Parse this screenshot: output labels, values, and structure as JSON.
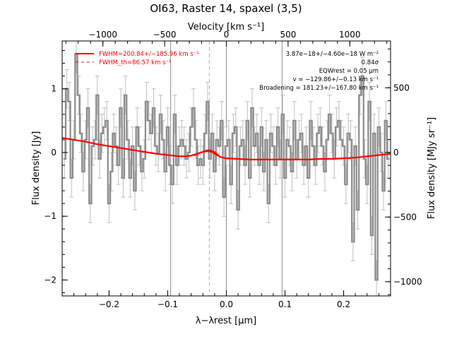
{
  "chart_data": {
    "type": "line",
    "title": "OI63, Raster 14, spaxel (3,5)",
    "xlabel": "λ−λrest [μm]",
    "ylabel": "Flux density [Jy]",
    "top_axis_label": "Velocity [km s⁻¹]",
    "right_axis_label": "Flux density [MJy sr⁻¹]",
    "xlim": [
      -0.28,
      0.28
    ],
    "ylim": [
      -2.25,
      1.75
    ],
    "top_axis_range_kms": [
      -1330,
      1330
    ],
    "right_axis_range": [
      -1110,
      862
    ],
    "xticks": [
      -0.2,
      -0.1,
      0.0,
      0.1,
      0.2
    ],
    "yticks": [
      -2,
      -1,
      0,
      1
    ],
    "top_ticks": [
      -1000,
      -500,
      0,
      500,
      1000
    ],
    "right_ticks": [
      -1000,
      -500,
      0,
      500
    ],
    "vertical_lines": [
      -0.095,
      0.0,
      0.095
    ],
    "dashed_line": -0.029,
    "grid": false,
    "colors": {
      "data": "#8c8c8c",
      "errorbar": "#bfbfbf",
      "fit": "#ff0000",
      "guides": "#8c8c8c"
    },
    "legend": {
      "placement": "top-left",
      "entries": [
        {
          "label": "FWHM=200.84+/−185.96 km s⁻¹",
          "style": "solid"
        },
        {
          "label": "FWHM_th=86.57 km s⁻¹",
          "style": "dashed"
        }
      ]
    },
    "annotations": [
      "3.87e−18+/−4.60e−18 W m⁻²",
      "0.84σ",
      "EQWrest = 0.05 μm",
      "v = −129.86+/−0.13 km s⁻¹",
      "Broadening = 181.23+/−167.80 km s⁻¹"
    ],
    "series": [
      {
        "kind": "spectrum",
        "x": [
          -0.276,
          -0.272,
          -0.268,
          -0.264,
          -0.26,
          -0.256,
          -0.252,
          -0.248,
          -0.244,
          -0.24,
          -0.236,
          -0.232,
          -0.228,
          -0.224,
          -0.22,
          -0.216,
          -0.212,
          -0.208,
          -0.204,
          -0.2,
          -0.196,
          -0.192,
          -0.188,
          -0.184,
          -0.18,
          -0.176,
          -0.172,
          -0.168,
          -0.164,
          -0.16,
          -0.156,
          -0.152,
          -0.148,
          -0.144,
          -0.14,
          -0.136,
          -0.132,
          -0.128,
          -0.124,
          -0.12,
          -0.116,
          -0.112,
          -0.108,
          -0.104,
          -0.1,
          -0.096,
          -0.092,
          -0.088,
          -0.084,
          -0.08,
          -0.076,
          -0.072,
          -0.068,
          -0.064,
          -0.06,
          -0.056,
          -0.052,
          -0.048,
          -0.044,
          -0.04,
          -0.036,
          -0.032,
          -0.028,
          -0.024,
          -0.02,
          -0.016,
          -0.012,
          -0.008,
          -0.004,
          0.0,
          0.004,
          0.008,
          0.012,
          0.016,
          0.02,
          0.024,
          0.028,
          0.032,
          0.036,
          0.04,
          0.044,
          0.048,
          0.052,
          0.056,
          0.06,
          0.064,
          0.068,
          0.072,
          0.076,
          0.08,
          0.084,
          0.088,
          0.092,
          0.096,
          0.1,
          0.104,
          0.108,
          0.112,
          0.116,
          0.12,
          0.124,
          0.128,
          0.132,
          0.136,
          0.14,
          0.144,
          0.148,
          0.152,
          0.156,
          0.16,
          0.164,
          0.168,
          0.172,
          0.176,
          0.18,
          0.184,
          0.188,
          0.192,
          0.196,
          0.2,
          0.204,
          0.208,
          0.212,
          0.216,
          0.22,
          0.224,
          0.228,
          0.232,
          0.236,
          0.24,
          0.244,
          0.248,
          0.252,
          0.256,
          0.26,
          0.264,
          0.268,
          0.272,
          0.276
        ],
        "values": [
          -0.1,
          1.0,
          0.8,
          -0.4,
          0.2,
          1.55,
          0.9,
          0.3,
          -0.3,
          0.2,
          0.7,
          -0.8,
          0.1,
          0.2,
          0.9,
          -0.1,
          0.3,
          0.4,
          0.5,
          -0.8,
          -0.3,
          0.3,
          0.1,
          -0.2,
          0.7,
          -0.4,
          0.9,
          0.2,
          -0.4,
          0.1,
          -0.6,
          0.4,
          0.1,
          -0.3,
          -0.1,
          0.8,
          0.5,
          0.3,
          0.7,
          0.1,
          0.0,
          0.6,
          0.2,
          -0.3,
          0.4,
          -0.2,
          -0.5,
          0.6,
          -0.2,
          0.1,
          0.2,
          0.1,
          -0.1,
          0.0,
          0.4,
          0.7,
          0.2,
          -0.2,
          -0.1,
          -0.2,
          0.3,
          0.8,
          -0.1,
          0.3,
          -0.3,
          0.2,
          0.1,
          0.5,
          -0.7,
          0.1,
          0.2,
          -0.5,
          0.3,
          0.4,
          -0.9,
          0.1,
          0.2,
          -0.2,
          0.5,
          -0.4,
          0.7,
          0.1,
          0.3,
          -0.2,
          0.4,
          -0.3,
          0.2,
          -0.8,
          0.3,
          0.1,
          -0.2,
          0.4,
          -0.1,
          0.6,
          -0.4,
          0.2,
          0.1,
          -0.3,
          0.5,
          -0.1,
          0.2,
          0.3,
          -0.2,
          0.1,
          -0.4,
          0.5,
          0.1,
          -0.2,
          0.3,
          0.4,
          0.1,
          -0.3,
          0.2,
          0.6,
          0.3,
          -0.1,
          0.4,
          0.5,
          0.2,
          0.1,
          -0.5,
          0.3,
          0.2,
          -1.4,
          0.1,
          -0.9,
          0.9,
          1.2,
          -0.1,
          -0.5,
          0.8,
          -1.3,
          0.3,
          -2.0,
          0.4,
          0.0,
          -0.6,
          0.5,
          -0.1
        ],
        "errors": 0.3
      },
      {
        "kind": "fit",
        "x": [
          -0.28,
          -0.26,
          -0.24,
          -0.22,
          -0.2,
          -0.18,
          -0.16,
          -0.14,
          -0.12,
          -0.1,
          -0.08,
          -0.07,
          -0.06,
          -0.05,
          -0.04,
          -0.035,
          -0.03,
          -0.025,
          -0.02,
          -0.01,
          0.0,
          0.02,
          0.04,
          0.06,
          0.08,
          0.1,
          0.12,
          0.14,
          0.16,
          0.18,
          0.2,
          0.22,
          0.24,
          0.26,
          0.28
        ],
        "values": [
          0.23,
          0.2,
          0.17,
          0.13,
          0.1,
          0.07,
          0.04,
          0.01,
          -0.02,
          -0.04,
          -0.06,
          -0.06,
          -0.05,
          -0.02,
          0.01,
          0.02,
          0.02,
          0.01,
          -0.02,
          -0.07,
          -0.09,
          -0.1,
          -0.11,
          -0.11,
          -0.11,
          -0.11,
          -0.11,
          -0.11,
          -0.1,
          -0.1,
          -0.09,
          -0.08,
          -0.06,
          -0.04,
          -0.02
        ]
      },
      {
        "kind": "fit-component",
        "x": [
          -0.055,
          -0.05,
          -0.045,
          -0.04,
          -0.035,
          -0.03,
          -0.025,
          -0.02,
          -0.015,
          -0.01
        ],
        "values": [
          -0.05,
          -0.03,
          -0.01,
          0.01,
          0.03,
          0.04,
          0.03,
          0.01,
          -0.03,
          -0.07
        ]
      }
    ]
  }
}
